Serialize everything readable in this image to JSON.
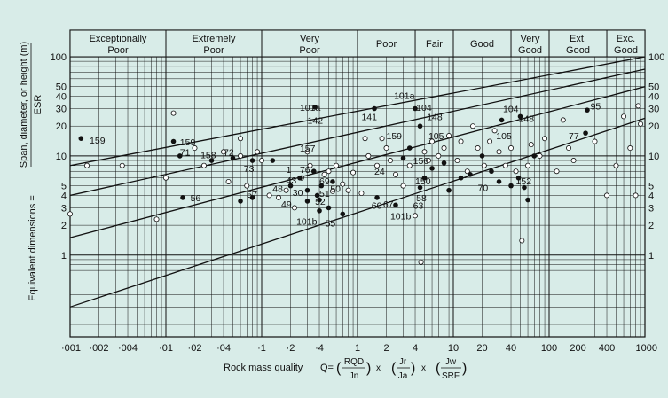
{
  "chart_data": {
    "type": "scatter",
    "x_scale": "log",
    "y_scale": "log",
    "xlim": [
      0.001,
      1000
    ],
    "ylim": [
      0.15,
      100
    ],
    "grid": true,
    "x_tick_labels": [
      {
        "v": 0.001,
        "t": "·001"
      },
      {
        "v": 0.002,
        "t": "·002"
      },
      {
        "v": 0.004,
        "t": "·004"
      },
      {
        "v": 0.01,
        "t": "·01"
      },
      {
        "v": 0.02,
        "t": "·02"
      },
      {
        "v": 0.04,
        "t": "·04"
      },
      {
        "v": 0.1,
        "t": "·1"
      },
      {
        "v": 0.2,
        "t": "·2"
      },
      {
        "v": 0.4,
        "t": "·4"
      },
      {
        "v": 1,
        "t": "1"
      },
      {
        "v": 2,
        "t": "2"
      },
      {
        "v": 4,
        "t": "4"
      },
      {
        "v": 10,
        "t": "10"
      },
      {
        "v": 20,
        "t": "20"
      },
      {
        "v": 40,
        "t": "40"
      },
      {
        "v": 100,
        "t": "100"
      },
      {
        "v": 200,
        "t": "200"
      },
      {
        "v": 400,
        "t": "400"
      },
      {
        "v": 1000,
        "t": "1000"
      }
    ],
    "y_tick_labels": [
      {
        "v": 100,
        "t": "100"
      },
      {
        "v": 50,
        "t": "50"
      },
      {
        "v": 40,
        "t": "40"
      },
      {
        "v": 30,
        "t": "30"
      },
      {
        "v": 20,
        "t": "20"
      },
      {
        "v": 10,
        "t": "10"
      },
      {
        "v": 5,
        "t": "5"
      },
      {
        "v": 4,
        "t": "4"
      },
      {
        "v": 3,
        "t": "3"
      },
      {
        "v": 2,
        "t": "2"
      },
      {
        "v": 1,
        "t": "1"
      }
    ],
    "categories": [
      {
        "label": [
          "Exceptionally",
          "Poor"
        ],
        "from": 0.001,
        "to": 0.01
      },
      {
        "label": [
          "Extremely",
          "Poor"
        ],
        "from": 0.01,
        "to": 0.1
      },
      {
        "label": [
          "Very",
          "Poor"
        ],
        "from": 0.1,
        "to": 1
      },
      {
        "label": [
          "Poor"
        ],
        "from": 1,
        "to": 4
      },
      {
        "label": [
          "Fair"
        ],
        "from": 4,
        "to": 10
      },
      {
        "label": [
          "Good"
        ],
        "from": 10,
        "to": 40
      },
      {
        "label": [
          "Very",
          "Good"
        ],
        "from": 40,
        "to": 100
      },
      {
        "label": [
          "Ext.",
          "Good"
        ],
        "from": 100,
        "to": 400
      },
      {
        "label": [
          "Exc.",
          "Good"
        ],
        "from": 400,
        "to": 1000
      }
    ],
    "boundary_lines": [
      {
        "from": [
          0.001,
          0.3
        ],
        "to": [
          1000,
          24
        ]
      },
      {
        "from": [
          0.001,
          1.5
        ],
        "to": [
          1000,
          50
        ]
      },
      {
        "from": [
          0.001,
          4
        ],
        "to": [
          1000,
          75
        ]
      },
      {
        "from": [
          0.001,
          8
        ],
        "to": [
          1000,
          100
        ]
      }
    ],
    "xlabel": {
      "prefix": "Rock mass quality",
      "q": "Q=",
      "f1": {
        "num": "RQD",
        "den": "Jn"
      },
      "f2": {
        "num": "Jr",
        "den": "Ja"
      },
      "f3": {
        "num": "Jw",
        "den": "SRF"
      },
      "times": "x"
    },
    "ylabel": {
      "main": "Equivalent dimensions =",
      "top": "Span, diameter, or height (m)",
      "bottom": "ESR"
    },
    "filled_points": [
      [
        0.0013,
        15
      ],
      [
        0.012,
        14
      ],
      [
        0.014,
        10
      ],
      [
        0.03,
        9
      ],
      [
        0.05,
        9.5
      ],
      [
        0.015,
        3.8
      ],
      [
        0.06,
        3.5
      ],
      [
        0.08,
        9
      ],
      [
        0.13,
        9
      ],
      [
        0.08,
        3.8
      ],
      [
        0.2,
        5
      ],
      [
        0.25,
        6
      ],
      [
        0.3,
        4.5
      ],
      [
        0.3,
        3.5
      ],
      [
        0.35,
        7
      ],
      [
        0.38,
        4
      ],
      [
        0.42,
        5
      ],
      [
        0.4,
        3.6
      ],
      [
        0.36,
        31
      ],
      [
        0.4,
        2.8
      ],
      [
        0.5,
        3
      ],
      [
        0.55,
        5.5
      ],
      [
        0.7,
        2.6
      ],
      [
        1.5,
        30
      ],
      [
        1.6,
        3.8
      ],
      [
        2.5,
        3.2
      ],
      [
        3,
        9.5
      ],
      [
        3.5,
        12
      ],
      [
        4.5,
        4.8
      ],
      [
        5,
        6
      ],
      [
        6,
        7.5
      ],
      [
        8,
        8.5
      ],
      [
        4,
        30
      ],
      [
        4.5,
        20
      ],
      [
        9,
        4.5
      ],
      [
        12,
        6
      ],
      [
        15,
        6.5
      ],
      [
        20,
        10
      ],
      [
        25,
        7
      ],
      [
        30,
        5.5
      ],
      [
        32,
        23
      ],
      [
        40,
        5
      ],
      [
        48,
        6
      ],
      [
        50,
        25
      ],
      [
        55,
        4.8
      ],
      [
        70,
        10
      ],
      [
        60,
        3.6
      ],
      [
        240,
        17
      ],
      [
        250,
        29
      ]
    ],
    "open_points": [
      [
        0.001,
        2.6
      ],
      [
        0.0015,
        8
      ],
      [
        0.0035,
        8
      ],
      [
        0.008,
        2.3
      ],
      [
        0.01,
        6
      ],
      [
        0.012,
        27
      ],
      [
        0.02,
        12
      ],
      [
        0.025,
        8
      ],
      [
        0.04,
        11
      ],
      [
        0.045,
        5.5
      ],
      [
        0.06,
        15
      ],
      [
        0.06,
        10
      ],
      [
        0.09,
        11
      ],
      [
        0.1,
        9
      ],
      [
        0.07,
        5
      ],
      [
        0.12,
        4
      ],
      [
        0.15,
        3.8
      ],
      [
        0.18,
        4.5
      ],
      [
        0.22,
        3
      ],
      [
        0.26,
        6
      ],
      [
        0.3,
        11
      ],
      [
        0.32,
        8
      ],
      [
        0.45,
        6.5
      ],
      [
        0.5,
        7
      ],
      [
        0.55,
        4.4
      ],
      [
        0.6,
        8
      ],
      [
        0.7,
        5.2
      ],
      [
        0.8,
        4.5
      ],
      [
        0.9,
        6.8
      ],
      [
        1.1,
        4.2
      ],
      [
        1.2,
        15
      ],
      [
        1.3,
        10
      ],
      [
        1.6,
        8
      ],
      [
        1.8,
        15
      ],
      [
        2,
        12
      ],
      [
        2.2,
        9
      ],
      [
        2.5,
        6.5
      ],
      [
        3,
        5
      ],
      [
        3.5,
        8
      ],
      [
        4,
        2.5
      ],
      [
        4.6,
        0.85
      ],
      [
        5,
        11
      ],
      [
        5.5,
        9
      ],
      [
        6,
        14
      ],
      [
        7,
        10
      ],
      [
        8,
        12
      ],
      [
        9,
        16
      ],
      [
        11,
        9
      ],
      [
        12,
        14
      ],
      [
        14,
        7
      ],
      [
        16,
        20
      ],
      [
        18,
        12
      ],
      [
        21,
        8
      ],
      [
        24,
        14
      ],
      [
        27,
        18
      ],
      [
        30,
        11
      ],
      [
        35,
        8
      ],
      [
        40,
        12
      ],
      [
        45,
        7
      ],
      [
        52,
        1.4
      ],
      [
        60,
        8
      ],
      [
        65,
        13
      ],
      [
        80,
        10
      ],
      [
        90,
        15
      ],
      [
        120,
        7
      ],
      [
        140,
        23
      ],
      [
        160,
        12
      ],
      [
        180,
        9
      ],
      [
        300,
        14
      ],
      [
        400,
        4
      ],
      [
        500,
        8
      ],
      [
        600,
        25
      ],
      [
        700,
        12
      ],
      [
        800,
        4
      ],
      [
        850,
        32
      ],
      [
        900,
        21
      ]
    ],
    "annotations": [
      {
        "t": "159",
        "x": 0.0016,
        "y": 14.5
      },
      {
        "t": "159",
        "x": 0.014,
        "y": 13.8
      },
      {
        "t": "71",
        "x": 0.014,
        "y": 11
      },
      {
        "t": "158",
        "x": 0.023,
        "y": 10.3
      },
      {
        "t": "72",
        "x": 0.04,
        "y": 11
      },
      {
        "t": "56",
        "x": 0.018,
        "y": 3.8
      },
      {
        "t": "57",
        "x": 0.07,
        "y": 4.1
      },
      {
        "t": "73",
        "x": 0.065,
        "y": 7.5
      },
      {
        "t": "48",
        "x": 0.13,
        "y": 4.7
      },
      {
        "t": "1",
        "x": 0.18,
        "y": 7.3
      },
      {
        "t": "43",
        "x": 0.18,
        "y": 5.7
      },
      {
        "t": "30",
        "x": 0.21,
        "y": 4.3
      },
      {
        "t": "49",
        "x": 0.16,
        "y": 3.3
      },
      {
        "t": "101a",
        "x": 0.25,
        "y": 31
      },
      {
        "t": "142",
        "x": 0.3,
        "y": 23
      },
      {
        "t": "157",
        "x": 0.25,
        "y": 12
      },
      {
        "t": "76",
        "x": 0.25,
        "y": 7.3
      },
      {
        "t": "69",
        "x": 0.4,
        "y": 5.6
      },
      {
        "t": "51",
        "x": 0.4,
        "y": 4.2
      },
      {
        "t": "50",
        "x": 0.52,
        "y": 4.7
      },
      {
        "t": "52",
        "x": 0.36,
        "y": 3.5
      },
      {
        "t": "101b",
        "x": 0.23,
        "y": 2.2
      },
      {
        "t": "55",
        "x": 0.46,
        "y": 2.1
      },
      {
        "t": "141",
        "x": 1.1,
        "y": 25
      },
      {
        "t": "101a",
        "x": 2.4,
        "y": 41
      },
      {
        "t": "104",
        "x": 4.1,
        "y": 31
      },
      {
        "t": "148",
        "x": 5.3,
        "y": 25
      },
      {
        "t": "159",
        "x": 2,
        "y": 16
      },
      {
        "t": "105",
        "x": 5.5,
        "y": 16
      },
      {
        "t": "156",
        "x": 3.8,
        "y": 9
      },
      {
        "t": "24",
        "x": 1.5,
        "y": 7
      },
      {
        "t": "60",
        "x": 1.4,
        "y": 3.2
      },
      {
        "t": "67",
        "x": 1.85,
        "y": 3.3
      },
      {
        "t": "101b",
        "x": 2.2,
        "y": 2.5
      },
      {
        "t": "63",
        "x": 3.8,
        "y": 3.2
      },
      {
        "t": "150",
        "x": 4,
        "y": 5.6
      },
      {
        "t": "58",
        "x": 4.1,
        "y": 3.8
      },
      {
        "t": "104",
        "x": 33,
        "y": 30
      },
      {
        "t": "148",
        "x": 48,
        "y": 24
      },
      {
        "t": "105",
        "x": 28,
        "y": 16
      },
      {
        "t": "70",
        "x": 18,
        "y": 4.8
      },
      {
        "t": "152",
        "x": 45,
        "y": 5.6
      },
      {
        "t": "95",
        "x": 270,
        "y": 32
      },
      {
        "t": "77",
        "x": 160,
        "y": 16
      }
    ],
    "label_colors": {
      "background": "#d8ece8",
      "lines": "#111111"
    }
  }
}
